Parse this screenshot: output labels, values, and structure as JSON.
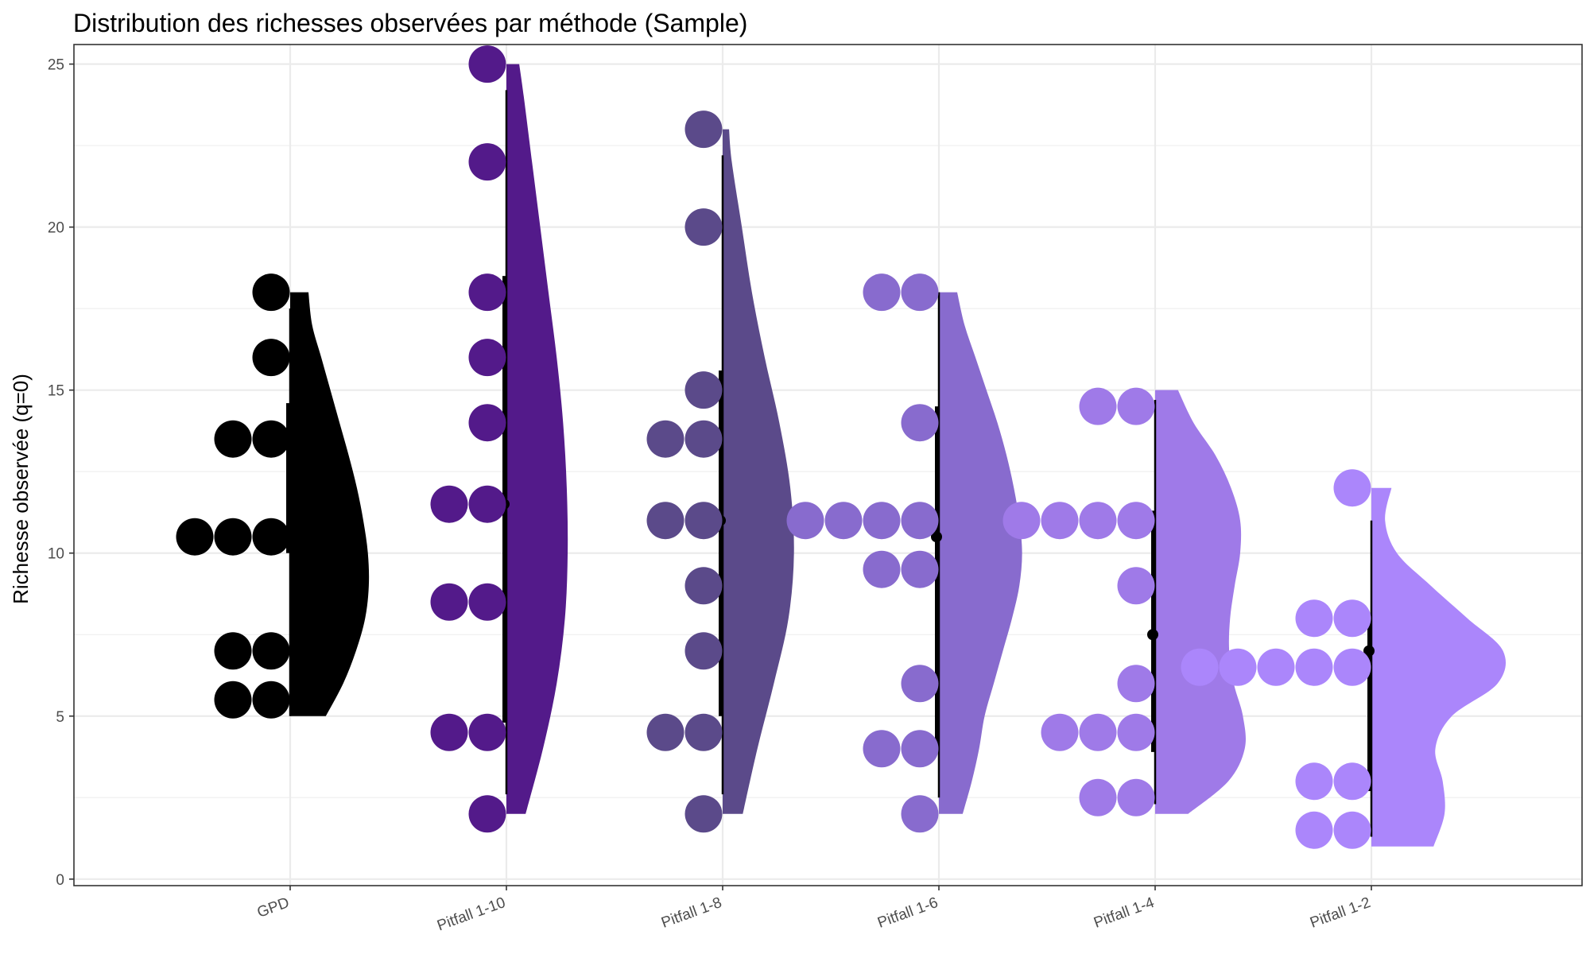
{
  "chart_data": {
    "type": "raincloud",
    "title": "Distribution des richesses observées par méthode (Sample)",
    "xlabel": "",
    "ylabel": "Richesse observée (q=0)",
    "ylim": [
      -0.2,
      25.6
    ],
    "yticks": [
      0,
      5,
      10,
      15,
      20,
      25
    ],
    "grid": true,
    "categories": [
      "GPD",
      "Pitfall 1-10",
      "Pitfall 1-8",
      "Pitfall 1-6",
      "Pitfall 1-4",
      "Pitfall 1-2"
    ],
    "colors": [
      "#000000",
      "#531a8a",
      "#5b4a8a",
      "#886bce",
      "#9f7ae8",
      "#ab86fb"
    ],
    "series": [
      {
        "points": [
          18,
          16,
          13.5,
          13.5,
          10.5,
          10.5,
          10.5,
          7,
          7,
          5.5,
          5.5
        ],
        "box": {
          "low": 5,
          "q1": 10,
          "median": 10.5,
          "q3": 14.6,
          "high": 17.5
        },
        "density": {
          "y": [
            5,
            6,
            7,
            8,
            9,
            10,
            11,
            12,
            13,
            14,
            15,
            16,
            17,
            18
          ],
          "w": [
            0.39,
            0.58,
            0.72,
            0.82,
            0.86,
            0.85,
            0.8,
            0.73,
            0.64,
            0.54,
            0.44,
            0.34,
            0.24,
            0.2
          ]
        }
      },
      {
        "points": [
          25,
          22,
          18,
          16,
          14,
          11.5,
          11.5,
          8.5,
          8.5,
          4.5,
          4.5,
          2
        ],
        "box": {
          "low": 2.6,
          "q1": 4.8,
          "median": 11.5,
          "q3": 18.5,
          "high": 24.2
        },
        "density": {
          "y": [
            2,
            4,
            6,
            8,
            10,
            12,
            14,
            16,
            18,
            20,
            22,
            24,
            25
          ],
          "w": [
            0.21,
            0.4,
            0.55,
            0.64,
            0.67,
            0.66,
            0.62,
            0.55,
            0.46,
            0.37,
            0.28,
            0.19,
            0.14
          ]
        }
      },
      {
        "points": [
          23,
          20,
          15,
          13.5,
          13.5,
          11,
          11,
          9,
          7,
          4.5,
          4.5,
          2
        ],
        "box": {
          "low": 2.6,
          "q1": 5,
          "median": 11,
          "q3": 15.6,
          "high": 22.2
        },
        "density": {
          "y": [
            2,
            4,
            6,
            8,
            10,
            12,
            14,
            16,
            18,
            20,
            22,
            23
          ],
          "w": [
            0.22,
            0.38,
            0.56,
            0.72,
            0.78,
            0.74,
            0.62,
            0.46,
            0.32,
            0.21,
            0.1,
            0.07
          ]
        }
      },
      {
        "points": [
          18,
          18,
          14,
          11,
          11,
          11,
          11,
          9.5,
          9.5,
          6,
          4,
          4,
          2
        ],
        "box": {
          "low": 2.5,
          "q1": 4.1,
          "median": 10.5,
          "q3": 14.5,
          "high": 18
        },
        "density": {
          "y": [
            2,
            3,
            4,
            5,
            6,
            7,
            8,
            9,
            10,
            11,
            12,
            13,
            14,
            15,
            16,
            17,
            18
          ],
          "w": [
            0.26,
            0.36,
            0.44,
            0.5,
            0.6,
            0.7,
            0.8,
            0.88,
            0.91,
            0.88,
            0.82,
            0.74,
            0.64,
            0.52,
            0.4,
            0.28,
            0.2
          ]
        }
      },
      {
        "points": [
          14.5,
          14.5,
          11,
          11,
          11,
          11,
          9,
          6,
          4.5,
          4.5,
          4.5,
          2.5,
          2.5
        ],
        "box": {
          "low": 2.3,
          "q1": 3.9,
          "median": 7.5,
          "q3": 11.3,
          "high": 14.7
        },
        "density": {
          "y": [
            2,
            3,
            4,
            5,
            6,
            7,
            8,
            9,
            10,
            11,
            12,
            13,
            14,
            15
          ],
          "w": [
            0.36,
            0.8,
            0.98,
            0.96,
            0.86,
            0.81,
            0.82,
            0.87,
            0.93,
            0.93,
            0.83,
            0.66,
            0.42,
            0.25
          ]
        }
      },
      {
        "points": [
          12,
          8,
          8,
          6.5,
          6.5,
          6.5,
          6.5,
          6.5,
          3,
          3,
          1.5,
          1.5
        ],
        "box": {
          "low": 1.3,
          "q1": 2.7,
          "median": 7,
          "q3": 8,
          "high": 11
        },
        "density": {
          "y": [
            1,
            2,
            3,
            4,
            5,
            6,
            7,
            8,
            9,
            10,
            11,
            12
          ],
          "w": [
            0.68,
            0.8,
            0.78,
            0.7,
            0.88,
            1.38,
            1.44,
            1.05,
            0.65,
            0.28,
            0.15,
            0.22
          ]
        }
      }
    ]
  }
}
